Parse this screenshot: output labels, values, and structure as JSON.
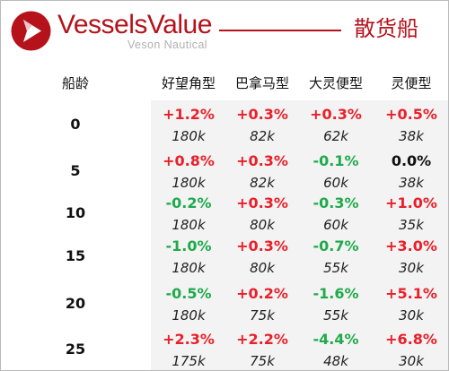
{
  "header": {
    "brand": "VesselsValue",
    "brand_sub": "Veson Nautical",
    "title": "散货船",
    "logo_icon": "play-triangle-icon",
    "brand_color": "#b5121b"
  },
  "table": {
    "age_label": "船龄",
    "columns": [
      "好望角型",
      "巴拿马型",
      "大灵便型",
      "灵便型"
    ],
    "colors": {
      "positive": "#e8202a",
      "negative": "#1faa4b",
      "neutral": "#111111"
    },
    "rows": [
      {
        "age": "0",
        "changes": [
          "+1.2%",
          "+0.3%",
          "+0.3%",
          "+0.5%"
        ],
        "values": [
          "180k",
          "82k",
          "62k",
          "38k"
        ]
      },
      {
        "age": "5",
        "changes": [
          "+0.8%",
          "+0.3%",
          "-0.1%",
          "0.0%"
        ],
        "values": [
          "180k",
          "82k",
          "60k",
          "38k"
        ]
      },
      {
        "age": "10",
        "changes": [
          "-0.2%",
          "+0.3%",
          "-0.3%",
          "+1.0%"
        ],
        "values": [
          "180k",
          "80k",
          "60k",
          "35k"
        ]
      },
      {
        "age": "15",
        "changes": [
          "-1.0%",
          "+0.3%",
          "-0.7%",
          "+3.0%"
        ],
        "values": [
          "180k",
          "80k",
          "55k",
          "30k"
        ]
      },
      {
        "age": "20",
        "changes": [
          "-0.5%",
          "+0.2%",
          "-1.6%",
          "+5.1%"
        ],
        "values": [
          "180k",
          "75k",
          "55k",
          "30k"
        ]
      },
      {
        "age": "25",
        "changes": [
          "+2.3%",
          "+2.2%",
          "-4.4%",
          "+6.8%"
        ],
        "values": [
          "175k",
          "75k",
          "48k",
          "30k"
        ]
      }
    ]
  }
}
